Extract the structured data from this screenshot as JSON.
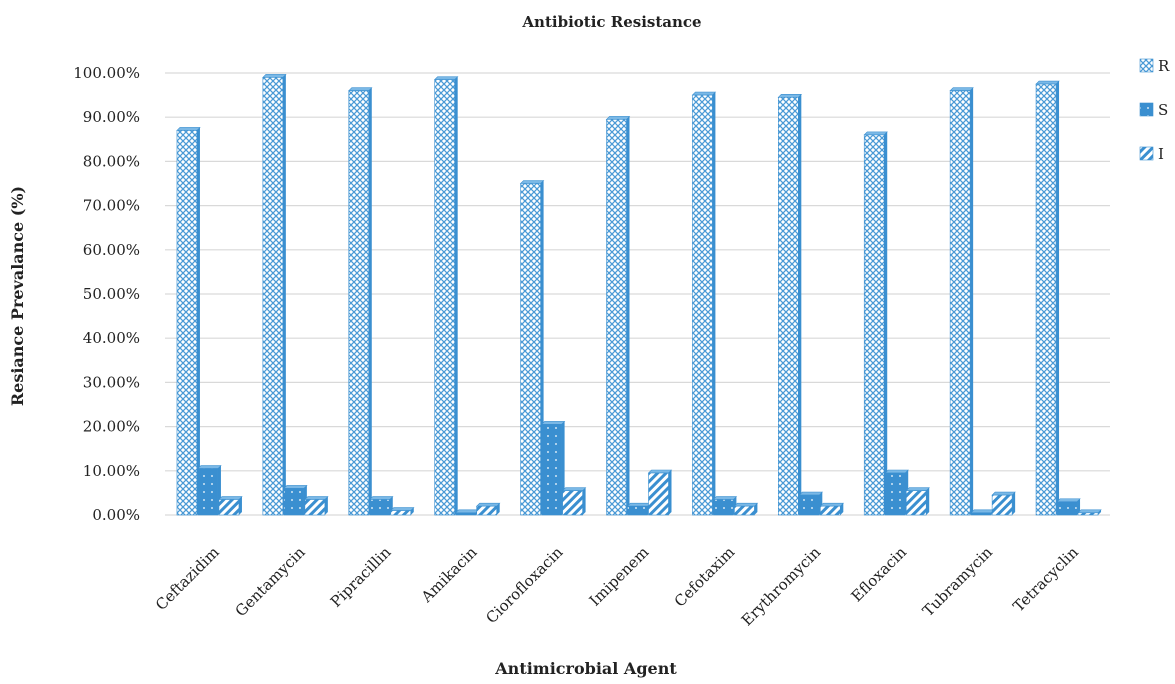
{
  "chart_data": {
    "type": "bar",
    "title": "Antibiotic Resistance",
    "xlabel": "Antimicrobial Agent",
    "ylabel": "Resiance Prevalance (%)",
    "ylim": [
      0,
      100
    ],
    "y_ticks": [
      "0.00%",
      "10.00%",
      "20.00%",
      "30.00%",
      "40.00%",
      "50.00%",
      "60.00%",
      "70.00%",
      "80.00%",
      "90.00%",
      "100.00%"
    ],
    "grid": true,
    "legend_position": "right",
    "categories": [
      "Ceftazidim",
      "Gentamycin",
      "Pipracillin",
      "Amikacin",
      "Ciorofloxacin",
      "Imipenem",
      "Cefotaxim",
      "Erythromycin",
      "Efloxacin",
      "Tubramycin",
      "Tetracyclin"
    ],
    "series": [
      {
        "name": "R",
        "pattern": "crosshatch",
        "values": [
          87,
          99,
          96,
          98.5,
          75,
          89.5,
          95,
          94.5,
          86,
          96,
          97.5
        ]
      },
      {
        "name": "S",
        "pattern": "solid-dotted",
        "values": [
          10.5,
          6,
          3.5,
          0.5,
          20.5,
          2,
          3.5,
          4.5,
          9.5,
          0.5,
          3
        ]
      },
      {
        "name": "I",
        "pattern": "diagonal-stripes",
        "values": [
          3.5,
          3.5,
          1,
          2,
          5.5,
          9.5,
          2,
          2,
          5.5,
          4.5,
          0.5
        ]
      }
    ],
    "colors": {
      "bar": "#3a8fd0",
      "bar_light": "#7ab8e6",
      "grid": "#d9d9d9"
    }
  }
}
